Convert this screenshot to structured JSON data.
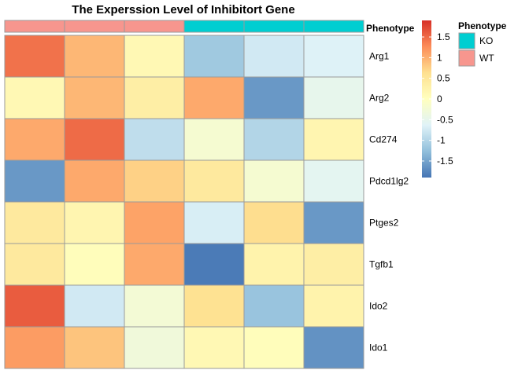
{
  "chart_data": {
    "type": "heatmap",
    "title": "The Experssion Level of Inhibitort Gene",
    "rows": [
      "Arg1",
      "Arg2",
      "Cd274",
      "Pdcd1lg2",
      "Ptges2",
      "Tgfb1",
      "Ido2",
      "Ido1"
    ],
    "columns": [
      "WT",
      "WT",
      "WT",
      "KO",
      "KO",
      "KO"
    ],
    "values": [
      [
        1.45,
        0.95,
        0.15,
        -1.15,
        -0.75,
        -0.65
      ],
      [
        0.15,
        0.95,
        0.35,
        1.05,
        -1.6,
        -0.5
      ],
      [
        1.05,
        1.5,
        -0.9,
        -0.2,
        -1.0,
        0.2
      ],
      [
        -1.6,
        1.05,
        0.75,
        0.45,
        -0.2,
        -0.55
      ],
      [
        0.45,
        0.2,
        1.1,
        -0.7,
        0.65,
        -1.6
      ],
      [
        0.45,
        0.05,
        1.05,
        -1.85,
        0.25,
        0.35
      ],
      [
        1.6,
        -0.75,
        -0.25,
        0.6,
        -1.2,
        0.25
      ],
      [
        1.15,
        0.85,
        -0.3,
        0.15,
        0.05,
        -1.65
      ]
    ],
    "annotation_label": "Phenotype",
    "annotation_colors": {
      "KO": "#00CED1",
      "WT": "#F7968E"
    },
    "colorbar": {
      "range": [
        -1.9,
        1.9
      ],
      "ticks": [
        1.5,
        1,
        0.5,
        0,
        -0.5,
        -1,
        -1.5
      ],
      "tick_labels": [
        "1.5",
        "1",
        "0.5",
        "0",
        "-0.5",
        "-1",
        "-1.5"
      ],
      "colors": [
        "#4575B4",
        "#91BFDB",
        "#E0F3F8",
        "#FFFFBF",
        "#FEE090",
        "#FC8D59",
        "#D73027"
      ]
    },
    "legend": {
      "title": "Phenotype",
      "position": "top-right",
      "items": [
        {
          "label": "KO",
          "color": "#00CED1"
        },
        {
          "label": "WT",
          "color": "#F7968E"
        }
      ]
    }
  }
}
